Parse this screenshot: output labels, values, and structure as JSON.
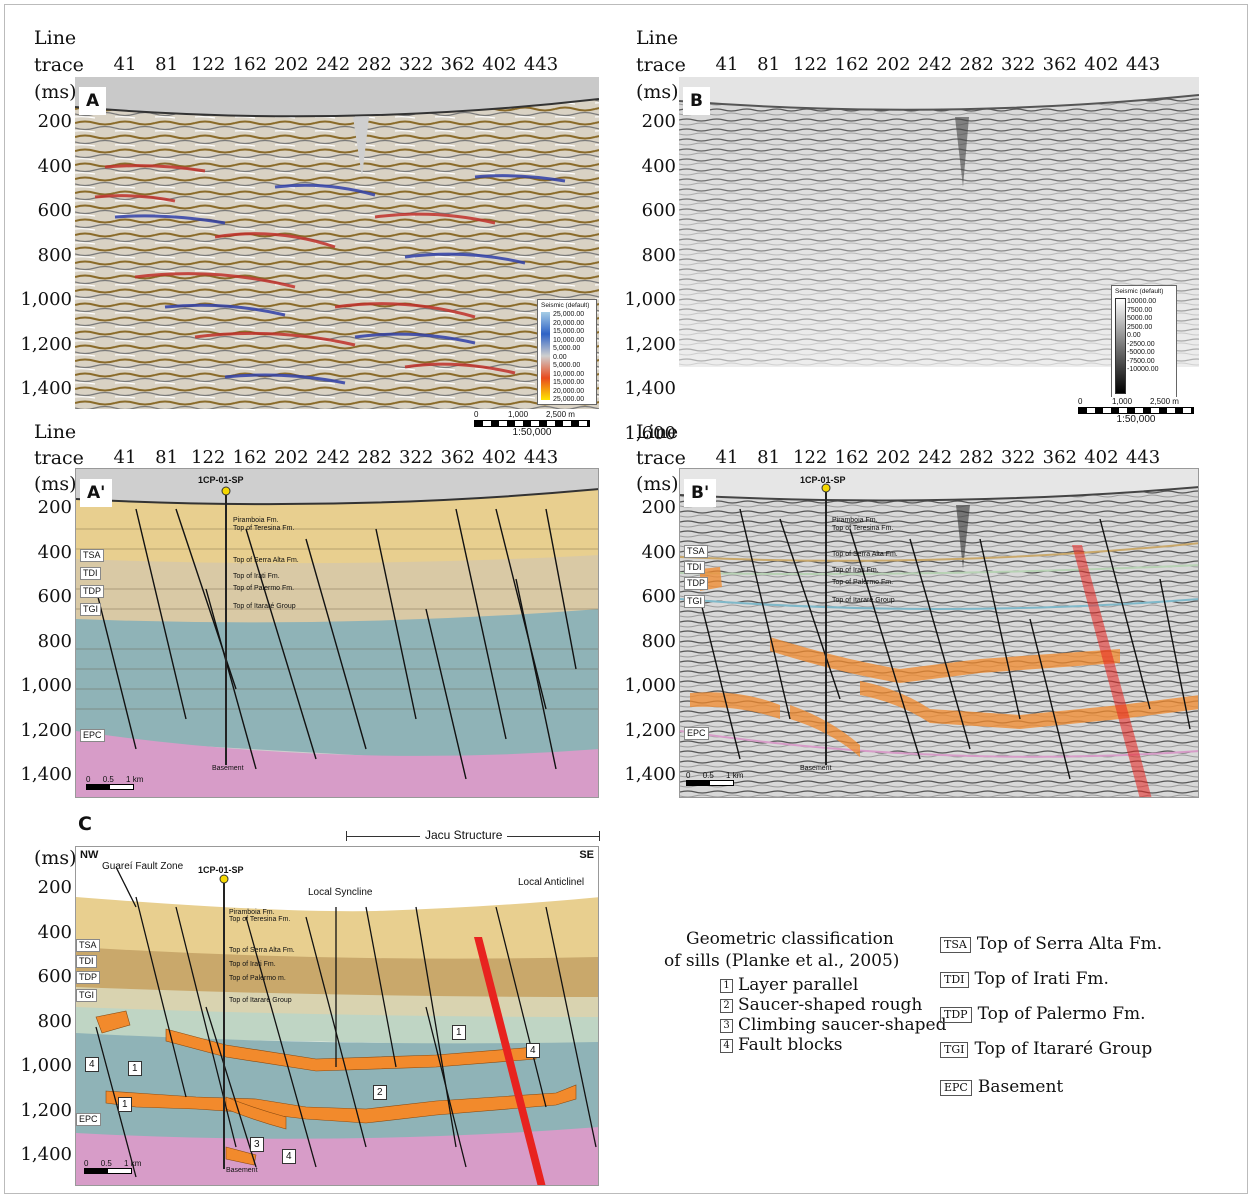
{
  "axes": {
    "line_trace_top": "Line",
    "line_trace_bottom": "trace",
    "ms": "(ms)",
    "traces": [
      "41",
      "81",
      "122",
      "162",
      "202",
      "242",
      "282",
      "322",
      "362",
      "402",
      "443"
    ],
    "depths_A": [
      "200",
      "400",
      "600",
      "800",
      "1,000",
      "1,200",
      "1,400"
    ],
    "depths_B": [
      "200",
      "400",
      "600",
      "800",
      "1,000",
      "1,200",
      "1,400",
      "1,600"
    ]
  },
  "panels": {
    "A": "A",
    "B": "B",
    "A2": "A'",
    "B2": "B'",
    "C": "C"
  },
  "colorbar_A": {
    "title": "Seismic (default)",
    "values": [
      "25,000.00",
      "20,000.00",
      "15,000.00",
      "10,000.00",
      "5,000.00",
      "0.00",
      "5,000.00",
      "10,000.00",
      "15,000.00",
      "20,000.00",
      "25,000.00"
    ]
  },
  "colorbar_B": {
    "title": "Seismic (default)",
    "values": [
      "10000.00",
      "7500.00",
      "5000.00",
      "2500.00",
      "0.00",
      "-2500.00",
      "-5000.00",
      "-7500.00",
      "-10000.00"
    ]
  },
  "scalebar_top": {
    "labels": [
      "0",
      "1,000",
      "2,500 m"
    ],
    "ratio": "1:50,000"
  },
  "scalebar_mid": {
    "labels": [
      "0",
      "0.5",
      "1 km"
    ]
  },
  "well": {
    "name": "1CP-01-SP",
    "tops": [
      "Piramboia Fm.",
      "Top of Teresina Fm.",
      "Top of Serra Alta Fm.",
      "Top of Irati Fm.",
      "Top of Palermo Fm.",
      "Top of Itararé Group",
      "Basement"
    ]
  },
  "well_C_tops": [
    "Piramboia Fm.",
    "Top of Teresina Fm.",
    "Top of Serra Alta Fm.",
    "Top of Irati Fm.",
    "Top of Palermo m.",
    "Top of Itararé Group",
    "Basement"
  ],
  "horizon_tags": [
    "TSA",
    "TDI",
    "TDP",
    "TGI",
    "EPC"
  ],
  "panelC": {
    "nw": "NW",
    "se": "SE",
    "jacu": "Jacu Structure",
    "guarei": "Guareí Fault Zone",
    "syncline": "Local Syncline",
    "anticline": "Local Anticlinel",
    "callouts": [
      "1",
      "1",
      "2",
      "3",
      "4",
      "4",
      "1",
      "4"
    ]
  },
  "legend": {
    "title_1": "Geometric classification",
    "title_2": "of sills (Planke et al., 2005)",
    "sills": [
      {
        "num": "1",
        "label": "Layer parallel"
      },
      {
        "num": "2",
        "label": "Saucer-shaped rough"
      },
      {
        "num": "3",
        "label": "Climbing saucer-shaped"
      },
      {
        "num": "4",
        "label": "Fault blocks"
      }
    ],
    "horizons": [
      {
        "tag": "TSA",
        "label": "Top of Serra Alta Fm."
      },
      {
        "tag": "TDI",
        "label": "Top of Irati Fm."
      },
      {
        "tag": "TDP",
        "label": "Top of Palermo Fm."
      },
      {
        "tag": "TGI",
        "label": "Top of Itararé Group"
      },
      {
        "tag": "EPC",
        "label": "Basement"
      }
    ]
  },
  "colors": {
    "formation_tan": "#e8cf8f",
    "formation_brown": "#c9a86b",
    "formation_teal": "#8fb3b7",
    "basement_pink": "#d79cc8",
    "sill_orange": "#f28a2c",
    "fault_red": "#e8231f"
  }
}
